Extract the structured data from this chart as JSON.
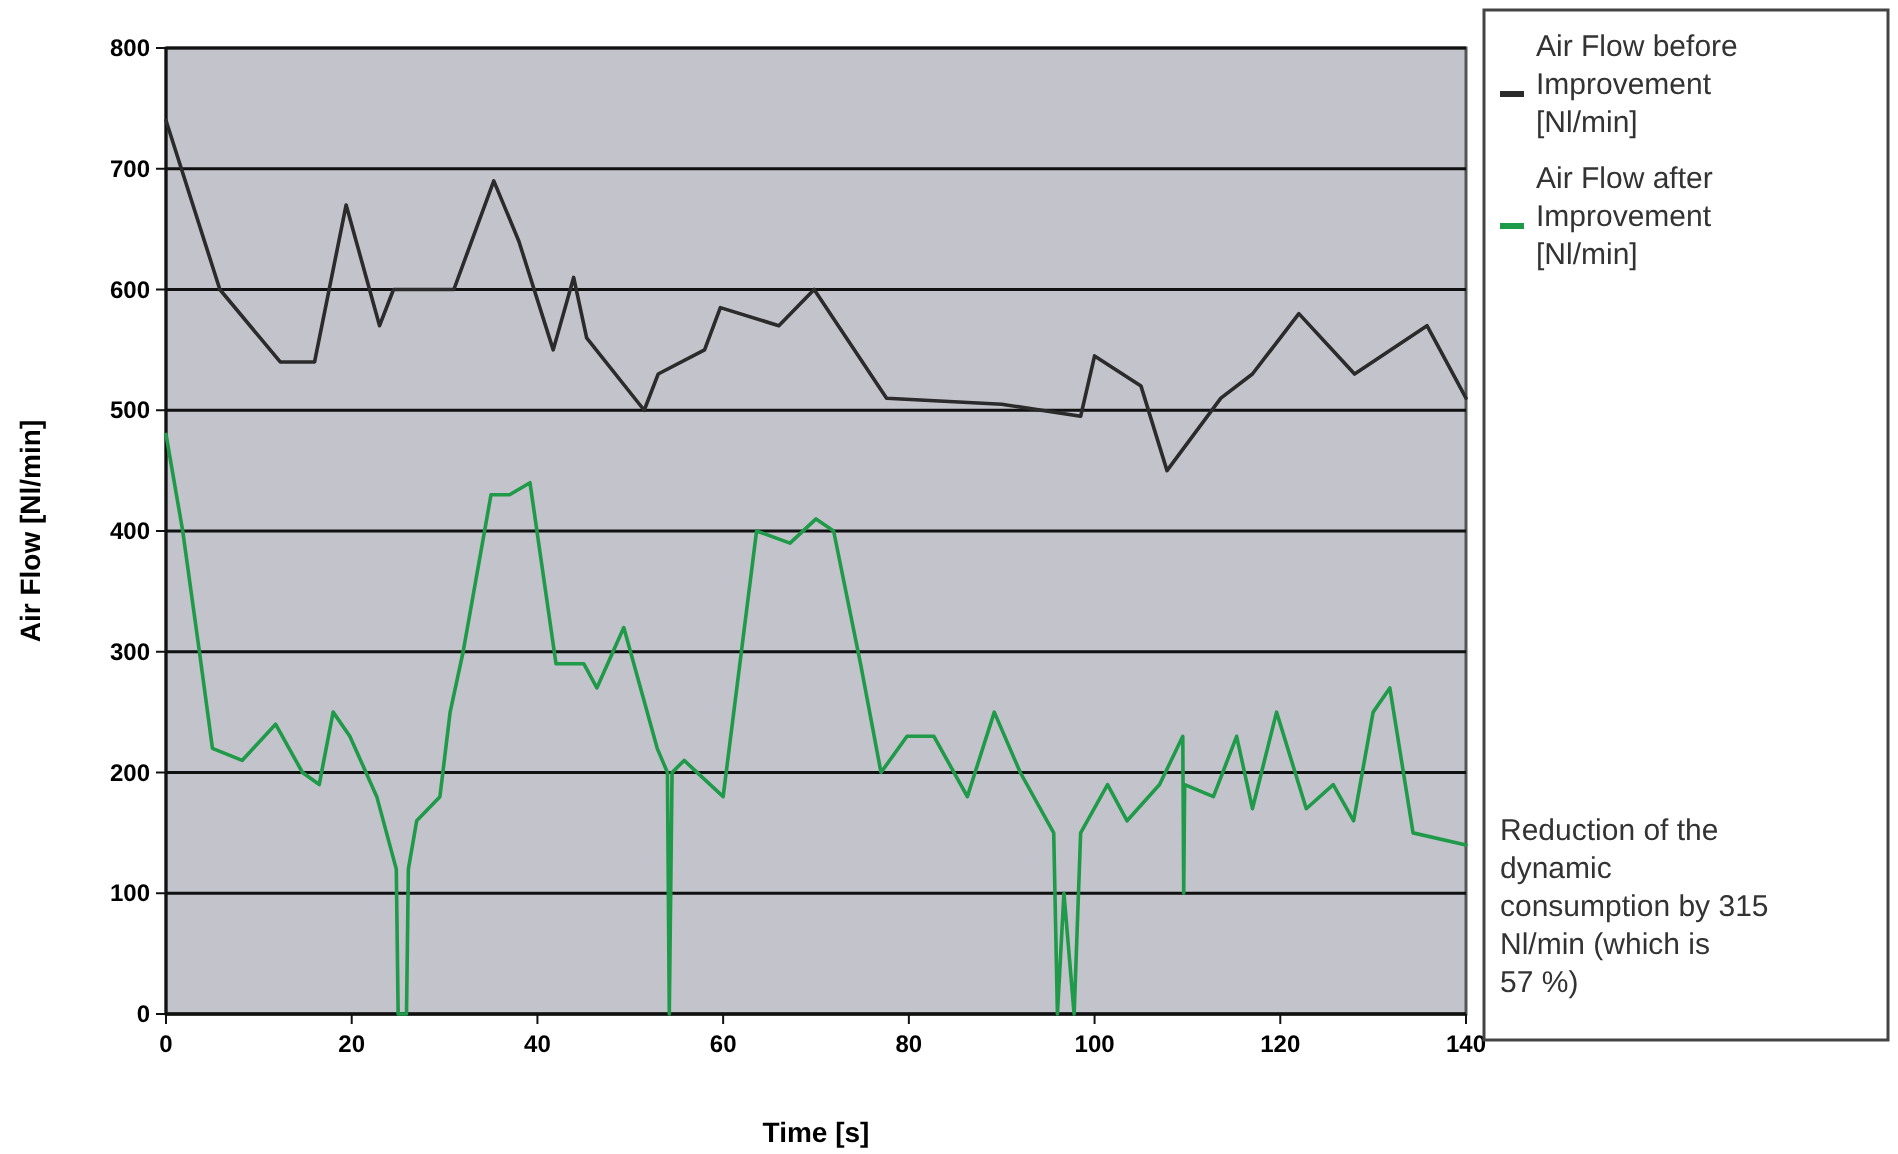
{
  "chart_data": {
    "type": "line",
    "xlabel": "Time [s]",
    "ylabel": "Air Flow [Nl/min]",
    "xlim": [
      0,
      140
    ],
    "xticks": [
      0,
      20,
      40,
      60,
      80,
      100,
      120,
      140
    ],
    "ylim": [
      0,
      800
    ],
    "yticks": [
      0,
      100,
      200,
      300,
      400,
      500,
      600,
      700,
      800
    ],
    "grid": "y",
    "legend": "right",
    "marker": "none",
    "line_style": "solid",
    "annotations": [
      "Reduction of the dynamic consumption by 315 Nl/min (which is 57 %)"
    ],
    "series": [
      {
        "name": "Air Flow before Improvement [Nl/min]",
        "color": "#2b2b2b",
        "x": [
          0,
          5.8,
          12.3,
          16,
          19.4,
          23,
          24.5,
          31,
          35.3,
          38,
          41.7,
          43.9,
          45.3,
          51.5,
          53,
          58,
          59.7,
          66,
          69.8,
          77.6,
          90,
          98.5,
          100,
          105,
          107.8,
          113.6,
          117,
          122,
          128,
          135.8,
          140
        ],
        "values": [
          740,
          600,
          540,
          540,
          670,
          570,
          600,
          600,
          690,
          640,
          550,
          610,
          560,
          500,
          530,
          550,
          585,
          570,
          600,
          510,
          505,
          495,
          545,
          520,
          450,
          510,
          530,
          580,
          530,
          570,
          510
        ]
      },
      {
        "name": "Air Flow after Improvement [Nl/min]",
        "color": "#1f9a48",
        "x": [
          0,
          1.8,
          3.6,
          5,
          8.2,
          11.8,
          14.7,
          16.5,
          18,
          19.8,
          22.7,
          24.8,
          25,
          25.9,
          26.1,
          27,
          29.5,
          30.6,
          32,
          35,
          37,
          39.2,
          42,
          45,
          46.4,
          49.3,
          52.9,
          54,
          54.2,
          54.5,
          55.8,
          60,
          63.6,
          67.2,
          70,
          71.9,
          74.8,
          77,
          79.8,
          82.7,
          86.3,
          89.2,
          92,
          95.6,
          96,
          96.7,
          97.8,
          98.5,
          101.4,
          103.5,
          107,
          109.5,
          109.6,
          109.7,
          112.8,
          115.3,
          117,
          119.6,
          122.8,
          125.7,
          127.9,
          130,
          131.8,
          134.3,
          140
        ],
        "values": [
          480,
          400,
          300,
          220,
          210,
          240,
          200,
          190,
          250,
          230,
          180,
          120,
          0,
          0,
          120,
          160,
          180,
          250,
          300,
          430,
          430,
          440,
          290,
          290,
          270,
          320,
          220,
          200,
          0,
          200,
          210,
          180,
          400,
          390,
          410,
          400,
          290,
          200,
          230,
          230,
          180,
          250,
          200,
          150,
          0,
          100,
          0,
          150,
          190,
          160,
          190,
          230,
          100,
          190,
          180,
          230,
          170,
          250,
          170,
          190,
          160,
          250,
          270,
          150,
          140
        ]
      }
    ]
  }
}
